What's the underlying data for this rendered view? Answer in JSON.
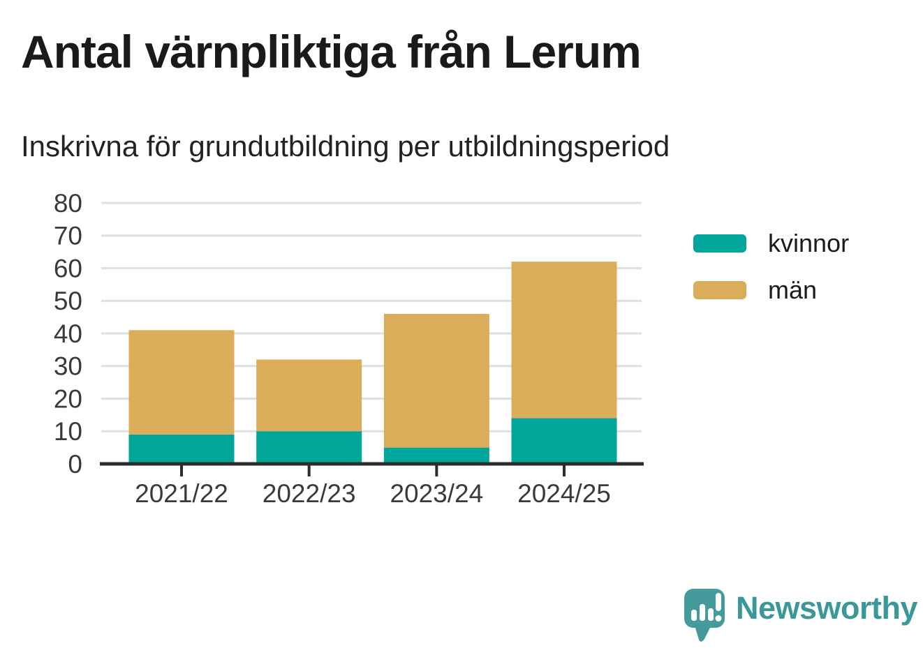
{
  "chart_data": {
    "type": "bar",
    "stacked": true,
    "title": "Antal värnpliktiga från Lerum",
    "subtitle": "Inskrivna för grundutbildning per utbildningsperiod",
    "categories": [
      "2021/22",
      "2022/23",
      "2023/24",
      "2024/25"
    ],
    "series": [
      {
        "name": "kvinnor",
        "color": "#00a69a",
        "values": [
          9,
          10,
          5,
          14
        ]
      },
      {
        "name": "män",
        "color": "#dbac59",
        "values": [
          32,
          22,
          41,
          48
        ]
      }
    ],
    "totals": [
      41,
      32,
      46,
      62
    ],
    "xlabel": "",
    "ylabel": "",
    "ylim": [
      0,
      80
    ],
    "yticks": [
      0,
      10,
      20,
      30,
      40,
      50,
      60,
      70,
      80
    ],
    "grid": true,
    "legend_position": "right"
  },
  "colors": {
    "axis": "#2d2d2d",
    "gridline": "#dfdfdf",
    "tick_label": "#3a3a3a",
    "brand_teal": "#3b9899",
    "logo_icon_teal": "#459a9b"
  },
  "branding": {
    "logo_text": "Newsworthy",
    "logo_icon": "newsworthy-speech-bubble-bar-chart-icon"
  }
}
